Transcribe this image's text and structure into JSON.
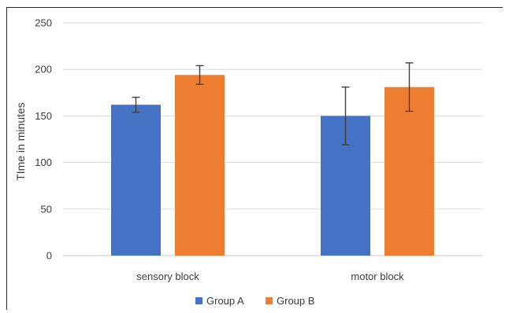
{
  "chart_data": {
    "type": "bar",
    "title": "",
    "xlabel": "",
    "ylabel": "TIme in minutes",
    "ylim": [
      0,
      250
    ],
    "yticks": [
      0,
      50,
      100,
      150,
      200,
      250
    ],
    "grid": true,
    "legend_position": "bottom",
    "categories": [
      "sensory block",
      "motor block"
    ],
    "series": [
      {
        "name": "Group A",
        "color": "#4472C4",
        "values": [
          162,
          150
        ],
        "error": [
          8,
          31
        ]
      },
      {
        "name": "Group B",
        "color": "#ED7D31",
        "values": [
          194,
          181
        ],
        "error": [
          10,
          26
        ]
      }
    ]
  }
}
